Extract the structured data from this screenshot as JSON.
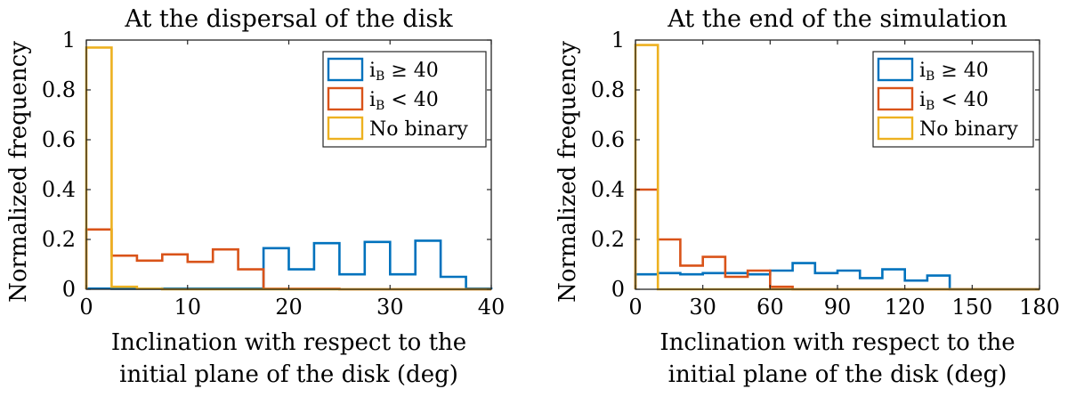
{
  "colors": {
    "blue": "#0072bd",
    "orange": "#d95319",
    "yellow": "#edb120",
    "axis": "#262626"
  },
  "chart_data": [
    {
      "type": "histogram",
      "title": "At the dispersal of the disk",
      "xlabel_lines": [
        "Inclination with respect to the",
        "initial plane of the disk (deg)"
      ],
      "ylabel": "Normalized frequency",
      "xlim": [
        0,
        40
      ],
      "ylim": [
        0,
        1
      ],
      "xticks": [
        0,
        10,
        20,
        30,
        40
      ],
      "yticks": [
        0,
        0.2,
        0.4,
        0.6,
        0.8,
        1
      ],
      "ytick_labels": [
        "0",
        "0.2",
        "0.4",
        "0.6",
        "0.8",
        "1"
      ],
      "bin_edges": [
        0,
        2.5,
        5,
        7.5,
        10,
        12.5,
        15,
        17.5,
        20,
        22.5,
        25,
        27.5,
        30,
        32.5,
        35,
        37.5,
        40
      ],
      "legend": {
        "location": "top-right"
      },
      "series": [
        {
          "name": "iB ≥ 40",
          "label_main": "i",
          "label_sub": "B",
          "label_rest": " ≥ 40",
          "color": "#0072bd",
          "values": [
            0.003,
            0.002,
            0.002,
            0.003,
            0.003,
            0.003,
            0.003,
            0.165,
            0.08,
            0.185,
            0.06,
            0.19,
            0.06,
            0.195,
            0.05,
            0.003
          ]
        },
        {
          "name": "iB < 40",
          "label_main": "i",
          "label_sub": "B",
          "label_rest": " < 40",
          "color": "#d95319",
          "values": [
            0.24,
            0.135,
            0.115,
            0.14,
            0.11,
            0.16,
            0.08,
            0.002,
            0.002,
            0.002,
            0.0,
            0.0,
            0.0,
            0.0,
            0.0,
            0.0
          ]
        },
        {
          "name": "No binary",
          "label_main": "No binary",
          "label_sub": "",
          "label_rest": "",
          "color": "#edb120",
          "values": [
            0.97,
            0.01,
            0.002,
            0.0,
            0.0,
            0.0,
            0.0,
            0.0,
            0.0,
            0.0,
            0.0,
            0.0,
            0.0,
            0.0,
            0.0,
            0.0
          ]
        }
      ]
    },
    {
      "type": "histogram",
      "title": "At the end of the simulation",
      "xlabel_lines": [
        "Inclination with respect to the",
        "initial plane of the disk (deg)"
      ],
      "ylabel": "Normalized frequency",
      "xlim": [
        0,
        180
      ],
      "ylim": [
        0,
        1
      ],
      "xticks": [
        0,
        30,
        60,
        90,
        120,
        150,
        180
      ],
      "yticks": [
        0,
        0.2,
        0.4,
        0.6,
        0.8,
        1
      ],
      "ytick_labels": [
        "0",
        "0.2",
        "0.4",
        "0.6",
        "0.8",
        "1"
      ],
      "bin_edges": [
        0,
        10,
        20,
        30,
        40,
        50,
        60,
        70,
        80,
        90,
        100,
        110,
        120,
        130,
        140,
        150,
        160,
        170,
        180
      ],
      "legend": {
        "location": "top-right"
      },
      "series": [
        {
          "name": "iB ≥ 40",
          "label_main": "i",
          "label_sub": "B",
          "label_rest": " ≥ 40",
          "color": "#0072bd",
          "values": [
            0.06,
            0.065,
            0.06,
            0.065,
            0.065,
            0.06,
            0.075,
            0.105,
            0.065,
            0.075,
            0.045,
            0.08,
            0.035,
            0.055,
            0.0,
            0.0,
            0.0,
            0.0
          ]
        },
        {
          "name": "iB < 40",
          "label_main": "i",
          "label_sub": "B",
          "label_rest": " < 40",
          "color": "#d95319",
          "values": [
            0.4,
            0.2,
            0.095,
            0.13,
            0.05,
            0.075,
            0.01,
            0.0,
            0.0,
            0.0,
            0.0,
            0.0,
            0.0,
            0.0,
            0.0,
            0.0,
            0.0,
            0.0
          ]
        },
        {
          "name": "No binary",
          "label_main": "No binary",
          "label_sub": "",
          "label_rest": "",
          "color": "#edb120",
          "values": [
            0.98,
            0.0,
            0.0,
            0.0,
            0.0,
            0.0,
            0.0,
            0.0,
            0.0,
            0.0,
            0.0,
            0.0,
            0.0,
            0.0,
            0.0,
            0.0,
            0.0,
            0.0
          ]
        }
      ]
    }
  ]
}
